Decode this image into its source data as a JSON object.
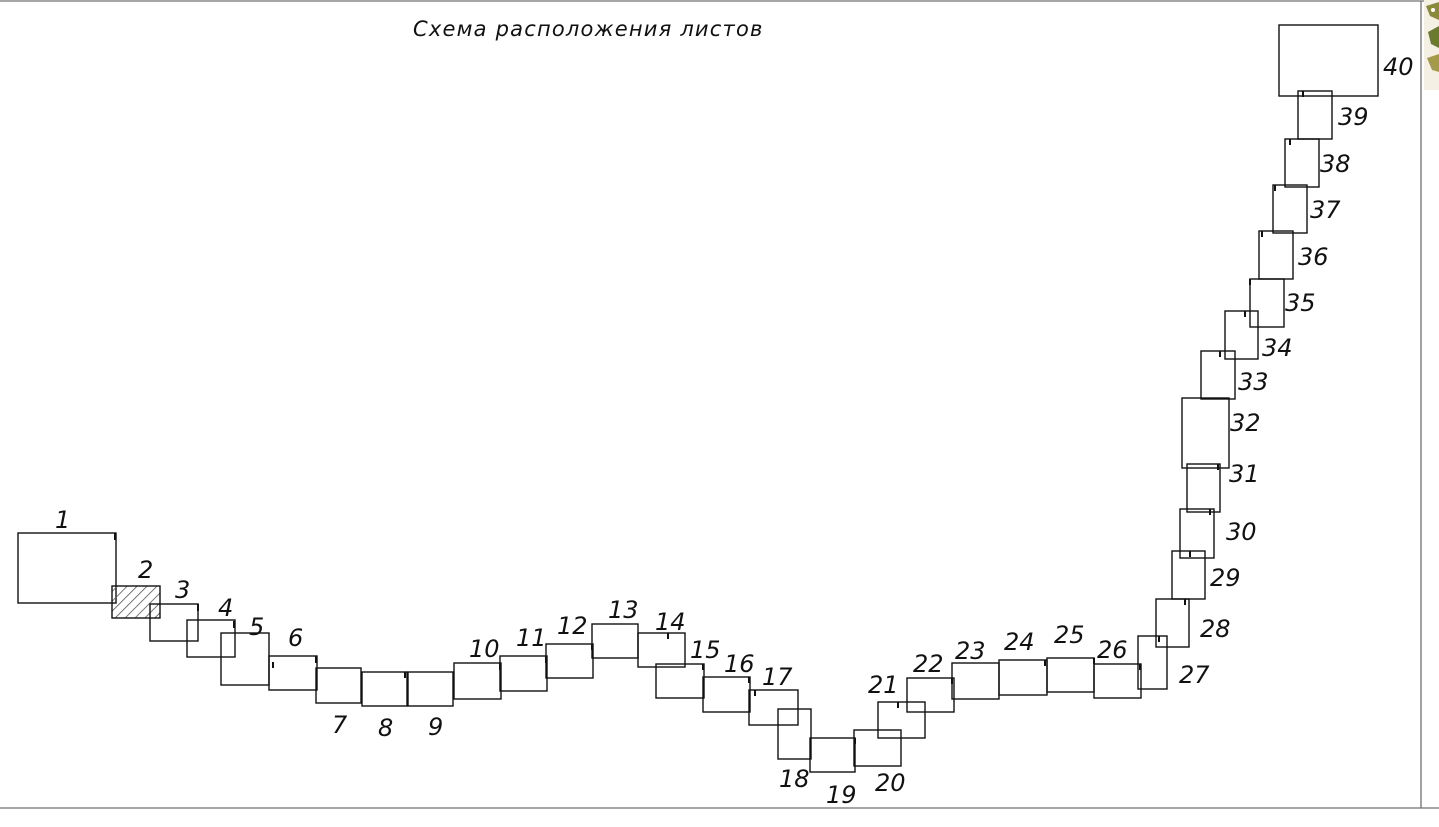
{
  "title": "Схема расположения листов",
  "highlighted_sheet": "2",
  "colors": {
    "line": "#111111",
    "frame": "#707070",
    "hatch": "#555555",
    "corner_foliage": "#8a8a3a"
  },
  "sheets": [
    {
      "label": "1"
    },
    {
      "label": "2"
    },
    {
      "label": "3"
    },
    {
      "label": "4"
    },
    {
      "label": "5"
    },
    {
      "label": "6"
    },
    {
      "label": "7"
    },
    {
      "label": "8"
    },
    {
      "label": "9"
    },
    {
      "label": "10"
    },
    {
      "label": "11"
    },
    {
      "label": "12"
    },
    {
      "label": "13"
    },
    {
      "label": "14"
    },
    {
      "label": "15"
    },
    {
      "label": "16"
    },
    {
      "label": "17"
    },
    {
      "label": "18"
    },
    {
      "label": "19"
    },
    {
      "label": "20"
    },
    {
      "label": "21"
    },
    {
      "label": "22"
    },
    {
      "label": "23"
    },
    {
      "label": "24"
    },
    {
      "label": "25"
    },
    {
      "label": "26"
    },
    {
      "label": "27"
    },
    {
      "label": "28"
    },
    {
      "label": "29"
    },
    {
      "label": "30"
    },
    {
      "label": "31"
    },
    {
      "label": "32"
    },
    {
      "label": "33"
    },
    {
      "label": "34"
    },
    {
      "label": "35"
    },
    {
      "label": "36"
    },
    {
      "label": "37"
    },
    {
      "label": "38"
    },
    {
      "label": "39"
    },
    {
      "label": "40"
    }
  ]
}
